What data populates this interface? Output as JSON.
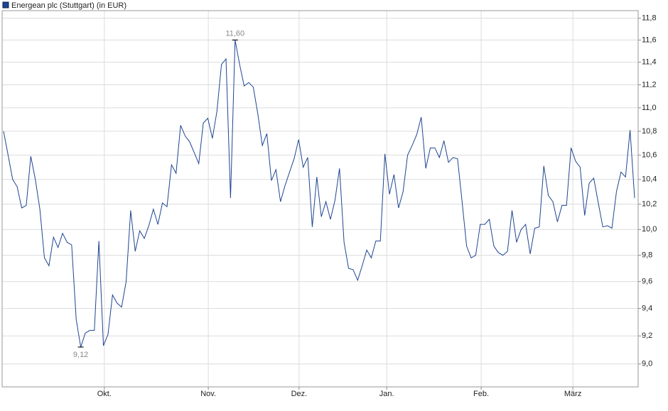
{
  "chart_data": {
    "type": "line",
    "series": [
      {
        "name": "Energean plc (Stuttgart) (in EUR)",
        "color": "#1e4592",
        "values": [
          10.8,
          10.6,
          10.4,
          10.34,
          10.17,
          10.19,
          10.59,
          10.4,
          10.16,
          9.78,
          9.72,
          9.94,
          9.86,
          9.97,
          9.9,
          9.88,
          9.32,
          9.12,
          9.22,
          9.24,
          9.24,
          9.91,
          9.13,
          9.21,
          9.5,
          9.44,
          9.41,
          9.6,
          10.15,
          9.83,
          9.99,
          9.93,
          10.03,
          10.16,
          10.04,
          10.21,
          10.18,
          10.52,
          10.45,
          10.85,
          10.76,
          10.71,
          10.62,
          10.53,
          10.87,
          10.91,
          10.74,
          10.97,
          11.38,
          11.43,
          10.25,
          11.6,
          11.38,
          11.19,
          11.22,
          11.18,
          10.95,
          10.68,
          10.78,
          10.39,
          10.48,
          10.22,
          10.35,
          10.46,
          10.57,
          10.73,
          10.5,
          10.58,
          10.02,
          10.42,
          10.1,
          10.22,
          10.08,
          10.23,
          10.49,
          9.9,
          9.7,
          9.69,
          9.61,
          9.72,
          9.84,
          9.78,
          9.91,
          9.91,
          10.61,
          10.28,
          10.44,
          10.17,
          10.3,
          10.6,
          10.68,
          10.77,
          10.92,
          10.49,
          10.66,
          10.66,
          10.58,
          10.72,
          10.54,
          10.58,
          10.57,
          10.22,
          9.87,
          9.78,
          9.8,
          10.04,
          10.04,
          10.08,
          9.87,
          9.82,
          9.8,
          9.83,
          10.15,
          9.9,
          10.0,
          10.04,
          9.81,
          10.01,
          10.02,
          10.51,
          10.27,
          10.22,
          10.06,
          10.19,
          10.19,
          10.66,
          10.55,
          10.5,
          10.11,
          10.37,
          10.41,
          10.21,
          10.02,
          10.03,
          10.01,
          10.3,
          10.46,
          10.42,
          10.81,
          10.25
        ]
      }
    ],
    "xlim": [
      0,
      139
    ],
    "xticks": [
      {
        "value": 22.2,
        "label": "Okt."
      },
      {
        "value": 45.1,
        "label": "Nov."
      },
      {
        "value": 65.1,
        "label": "Dez."
      },
      {
        "value": 84.4,
        "label": "Jan."
      },
      {
        "value": 105.2,
        "label": "Feb."
      },
      {
        "value": 125.4,
        "label": "März"
      }
    ],
    "ylim": [
      8.84,
      11.87
    ],
    "log_scale": true,
    "yticks": [
      {
        "value": 9.0,
        "label": "9,0"
      },
      {
        "value": 9.2,
        "label": "9,2"
      },
      {
        "value": 9.4,
        "label": "9,4"
      },
      {
        "value": 9.6,
        "label": "9,6"
      },
      {
        "value": 9.8,
        "label": "9,8"
      },
      {
        "value": 10.0,
        "label": "10,0"
      },
      {
        "value": 10.2,
        "label": "10,2"
      },
      {
        "value": 10.4,
        "label": "10,4"
      },
      {
        "value": 10.6,
        "label": "10,6"
      },
      {
        "value": 10.8,
        "label": "10,8"
      },
      {
        "value": 11.0,
        "label": "11,0"
      },
      {
        "value": 11.2,
        "label": "11,2"
      },
      {
        "value": 11.4,
        "label": "11,4"
      },
      {
        "value": 11.6,
        "label": "11,6"
      },
      {
        "value": 11.8,
        "label": "11,8"
      }
    ],
    "grid": true,
    "annotations": [
      {
        "text": "11,60",
        "x": 51,
        "y": 11.6
      },
      {
        "text": "9,12",
        "x": 17,
        "y": 9.12
      }
    ]
  }
}
